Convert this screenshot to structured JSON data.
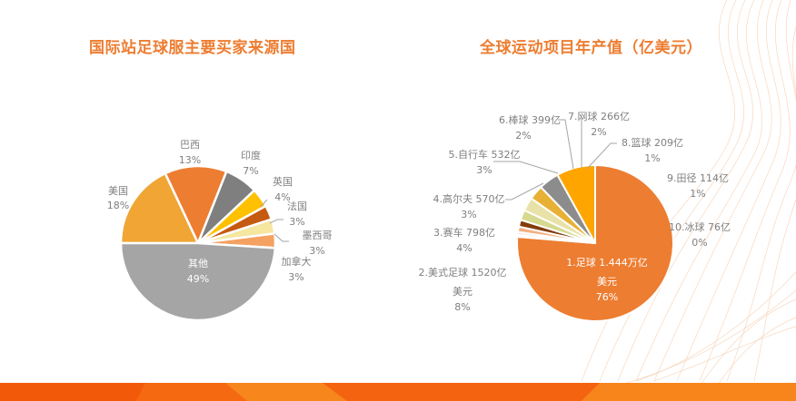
{
  "chart_data": [
    {
      "type": "pie",
      "title": "国际站足球服主要买家来源国",
      "start_angle": "9 o'clock, clockwise",
      "categories": [
        "美国",
        "巴西",
        "印度",
        "英国",
        "法国",
        "墨西哥",
        "加拿大",
        "其他"
      ],
      "values": [
        18,
        13,
        7,
        4,
        3,
        3,
        3,
        49
      ],
      "labels": [
        "18%",
        "13%",
        "7%",
        "4%",
        "3%",
        "3%",
        "3%",
        "49%"
      ],
      "colors": [
        "#f0a535",
        "#ed7d31",
        "#7f7f7f",
        "#ffc000",
        "#c55a11",
        "#f5e6a0",
        "#f4a162",
        "#a5a5a5"
      ],
      "unit": "%"
    },
    {
      "type": "pie",
      "title": "全球运动项目年产值（亿美元）",
      "start_angle": "12 o'clock, clockwise",
      "categories": [
        "1.足球",
        "10.冰球",
        "9.田径",
        "8.篮球",
        "7.网球",
        "6.棒球",
        "5.自行车",
        "4.高尔夫",
        "3.赛车",
        "2.美式足球"
      ],
      "values": [
        14440,
        76,
        114,
        209,
        266,
        399,
        532,
        570,
        798,
        1520
      ],
      "value_labels": [
        "1.444万亿美元",
        "76亿",
        "114亿",
        "209亿",
        "266亿",
        "399亿",
        "532亿",
        "570亿",
        "798亿",
        "1520亿美元"
      ],
      "percentages": [
        76,
        0,
        1,
        1,
        2,
        2,
        3,
        3,
        4,
        8
      ],
      "colors": [
        "#ed7d31",
        "#f2f2f2",
        "#fbe5d6",
        "#f4b183",
        "#843c0c",
        "#d6d98e",
        "#e9e2a8",
        "#e8b136",
        "#8c8c8c",
        "#ffa500"
      ],
      "unit": "亿美元"
    }
  ],
  "left": {
    "title": "国际站足球服主要买家来源国",
    "labels": [
      {
        "name": "美国",
        "pct": "18%"
      },
      {
        "name": "巴西",
        "pct": "13%"
      },
      {
        "name": "印度",
        "pct": "7%"
      },
      {
        "name": "英国",
        "pct": "4%"
      },
      {
        "name": "法国",
        "pct": "3%"
      },
      {
        "name": "墨西哥",
        "pct": "3%"
      },
      {
        "name": "加拿大",
        "pct": "3%"
      },
      {
        "name": "其他",
        "pct": "49%"
      }
    ]
  },
  "right": {
    "title": "全球运动项目年产值（亿美元）",
    "labels": [
      {
        "line1": "1.足球 1.444万亿",
        "line2": "美元",
        "pct": "76%"
      },
      {
        "line1": "2.美式足球 1520亿",
        "line2": "美元",
        "pct": "8%"
      },
      {
        "line1": "3.赛车 798亿",
        "pct": "4%"
      },
      {
        "line1": "4.高尔夫 570亿",
        "pct": "3%"
      },
      {
        "line1": "5.自行车 532亿",
        "pct": "3%"
      },
      {
        "line1": "6.棒球 399亿",
        "pct": "2%"
      },
      {
        "line1": "7.网球 266亿",
        "pct": "2%"
      },
      {
        "line1": "8.篮球 209亿",
        "pct": "1%"
      },
      {
        "line1": "9.田径 114亿",
        "pct": "1%"
      },
      {
        "line1": "10.冰球 76亿",
        "pct": "0%"
      }
    ]
  },
  "colors": {
    "title": "#ed7d31",
    "label": "#7f7f7f",
    "footer_dark": "#f25a0a",
    "footer_light": "#f7851c"
  }
}
